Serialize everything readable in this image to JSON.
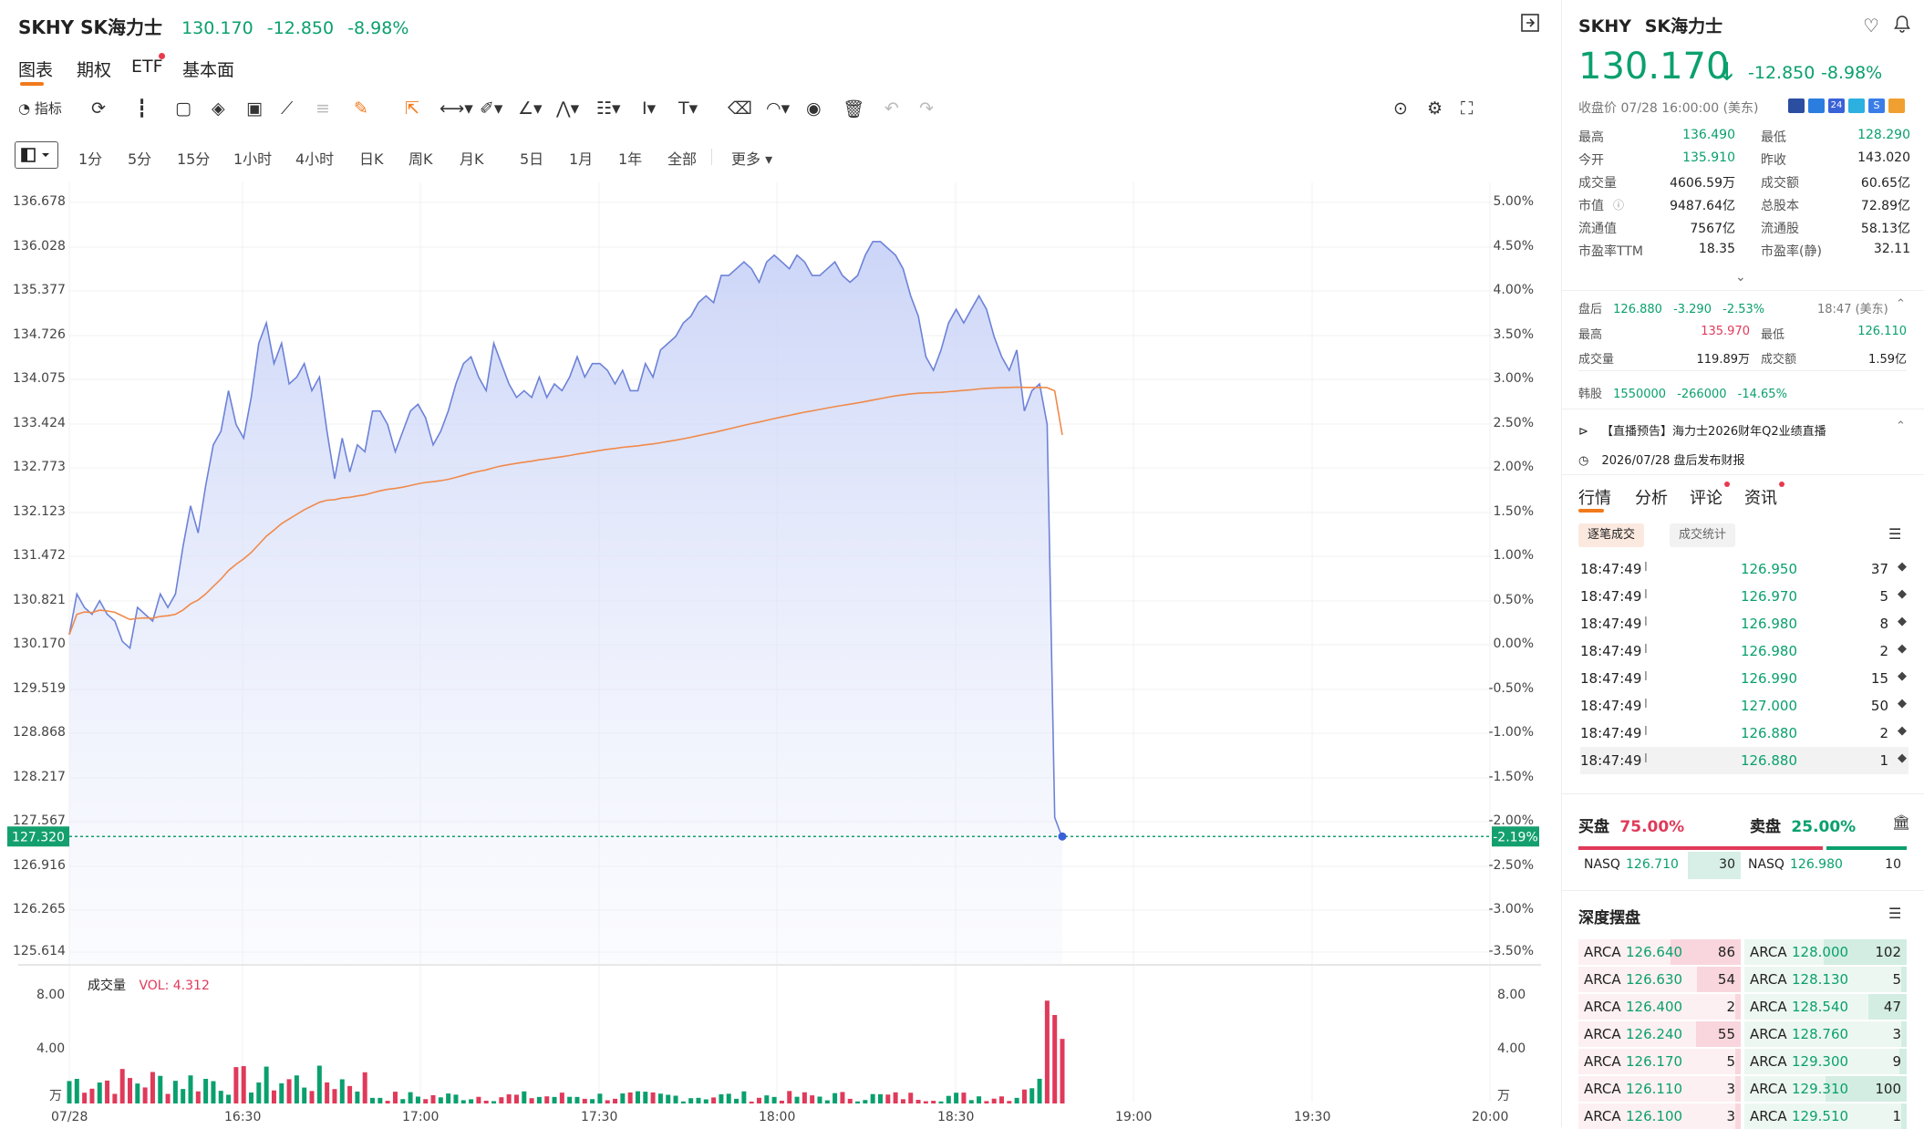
{
  "header": {
    "symbol": "SKHY SK海力士",
    "price": "130.170",
    "change": "-12.850",
    "pct": "-8.98%"
  },
  "tabs": [
    {
      "label": "图表",
      "active": true
    },
    {
      "label": "期权"
    },
    {
      "label": "ETF",
      "dot": true
    },
    {
      "label": "基本面"
    }
  ],
  "toolbar": {
    "indicator_label": "指标",
    "icons": [
      "replay-icon",
      "candle-icon",
      "square-icon",
      "layers-icon",
      "vwap-icon",
      "compare-icon",
      "align-icon",
      "pen-icon",
      "cursor-icon",
      "line-tool-icon",
      "brush-icon",
      "angle-icon",
      "pattern-icon",
      "fib-icon",
      "text-cursor-icon",
      "text-icon",
      "eraser-icon",
      "measure-icon",
      "eye-icon",
      "trash-icon",
      "undo-icon",
      "redo-icon"
    ]
  },
  "periods": [
    "1分",
    "5分",
    "15分",
    "1小时",
    "4小时",
    "日K",
    "周K",
    "月K",
    "5日",
    "1月",
    "1年",
    "全部",
    "更多"
  ],
  "chart_data": {
    "type": "area",
    "y_left_ticks": [
      "136.678",
      "136.028",
      "135.377",
      "134.726",
      "134.075",
      "133.424",
      "132.773",
      "132.123",
      "131.472",
      "130.821",
      "130.170",
      "129.519",
      "128.868",
      "128.217",
      "127.567",
      "126.916",
      "126.265",
      "125.614"
    ],
    "y_right_ticks": [
      "5.00%",
      "4.50%",
      "4.00%",
      "3.50%",
      "3.00%",
      "2.50%",
      "2.00%",
      "1.50%",
      "1.00%",
      "0.50%",
      "0.00%",
      "-0.50%",
      "-1.00%",
      "-1.50%",
      "-2.00%",
      "-2.50%",
      "-3.00%",
      "-3.50%"
    ],
    "x_ticks": [
      "07/28",
      "16:30",
      "17:00",
      "17:30",
      "18:00",
      "18:30",
      "19:00",
      "19:30",
      "20:00"
    ],
    "ylim": [
      125.614,
      136.678
    ],
    "current_price_label": "127.320",
    "current_pct_label": "-2.19%",
    "price": [
      130.3,
      130.9,
      130.7,
      130.6,
      130.8,
      130.6,
      130.5,
      130.2,
      130.1,
      130.7,
      130.6,
      130.5,
      130.9,
      130.7,
      130.9,
      131.6,
      132.2,
      131.8,
      132.5,
      133.1,
      133.3,
      133.9,
      133.4,
      133.2,
      133.8,
      134.6,
      134.9,
      134.3,
      134.6,
      134.0,
      134.1,
      134.3,
      133.9,
      134.1,
      133.3,
      132.6,
      133.2,
      132.7,
      133.1,
      133.0,
      133.6,
      133.6,
      133.4,
      133.0,
      133.3,
      133.6,
      133.7,
      133.5,
      133.1,
      133.3,
      133.6,
      134.0,
      134.3,
      134.4,
      134.1,
      133.9,
      134.6,
      134.3,
      134.0,
      133.8,
      133.9,
      133.8,
      134.1,
      133.8,
      134.0,
      133.9,
      134.1,
      134.4,
      134.1,
      134.3,
      134.3,
      134.2,
      134.0,
      134.2,
      133.9,
      133.9,
      134.3,
      134.1,
      134.5,
      134.6,
      134.7,
      134.9,
      135.0,
      135.2,
      135.3,
      135.2,
      135.6,
      135.6,
      135.7,
      135.8,
      135.7,
      135.5,
      135.8,
      135.9,
      135.8,
      135.7,
      135.9,
      135.8,
      135.6,
      135.6,
      135.7,
      135.8,
      135.6,
      135.5,
      135.6,
      135.9,
      136.1,
      136.1,
      136.0,
      135.9,
      135.7,
      135.3,
      135.0,
      134.4,
      134.2,
      134.5,
      134.9,
      135.1,
      134.9,
      135.1,
      135.3,
      135.1,
      134.7,
      134.4,
      134.2,
      134.5,
      133.6,
      133.9,
      134.0,
      133.4,
      127.6,
      127.3
    ],
    "avg_line": "average-price-line",
    "volume_label": "成交量",
    "vol_indicator": "VOL: 4.312",
    "vol_left_ticks": [
      "8.00",
      "4.00",
      "万"
    ],
    "vol_right_ticks": [
      "8.00",
      "4.00",
      "万"
    ],
    "vol_max": 9
  },
  "right": {
    "symbol": "SKHY",
    "name": "SK海力士",
    "price": "130.170",
    "change": "-12.850",
    "pct": "-8.98%",
    "close_time": "收盘价 07/28 16:00:00 (美东)",
    "stats": [
      {
        "l1": "最高",
        "v1": "136.490",
        "c1": "g",
        "l2": "最低",
        "v2": "128.290",
        "c2": "g"
      },
      {
        "l1": "今开",
        "v1": "135.910",
        "c1": "g",
        "l2": "昨收",
        "v2": "143.020",
        "c2": ""
      },
      {
        "l1": "成交量",
        "v1": "4606.59万",
        "c1": "",
        "l2": "成交额",
        "v2": "60.65亿",
        "c2": ""
      },
      {
        "l1": "市值",
        "v1": "9487.64亿",
        "c1": "",
        "l2": "总股本",
        "v2": "72.89亿",
        "c2": ""
      },
      {
        "l1": "流通值",
        "v1": "7567亿",
        "c1": "",
        "l2": "流通股",
        "v2": "58.13亿",
        "c2": ""
      },
      {
        "l1": "市盈率TTM",
        "v1": "18.35",
        "c1": "",
        "l2": "市盈率(静)",
        "v2": "32.11",
        "c2": ""
      }
    ],
    "after": {
      "label": "盘后",
      "price": "126.880",
      "change": "-3.290",
      "pct": "-2.53%",
      "time": "18:47 (美东)",
      "high_label": "最高",
      "high": "135.970",
      "low_label": "最低",
      "low": "126.110",
      "vol_label": "成交量",
      "vol": "119.89万",
      "amt_label": "成交额",
      "amt": "1.59亿"
    },
    "korea": {
      "label": "韩股",
      "price": "1550000",
      "change": "-266000",
      "pct": "-14.65%"
    },
    "live_notice": "【直播预告】海力士2026财年Q2业绩直播",
    "report_notice": "2026/07/28 盘后发布财报",
    "sub_tabs": [
      {
        "label": "行情",
        "active": true
      },
      {
        "label": "分析"
      },
      {
        "label": "评论",
        "dot": true
      },
      {
        "label": "资讯",
        "dot": true
      }
    ],
    "trade_tabs": [
      "逐笔成交",
      "成交统计"
    ],
    "trades": [
      {
        "time": "18:47:49",
        "price": "126.950",
        "qty": "37"
      },
      {
        "time": "18:47:49",
        "price": "126.970",
        "qty": "5"
      },
      {
        "time": "18:47:49",
        "price": "126.980",
        "qty": "8"
      },
      {
        "time": "18:47:49",
        "price": "126.980",
        "qty": "2"
      },
      {
        "time": "18:47:49",
        "price": "126.990",
        "qty": "15"
      },
      {
        "time": "18:47:49",
        "price": "127.000",
        "qty": "50"
      },
      {
        "time": "18:47:49",
        "price": "126.880",
        "qty": "2"
      },
      {
        "time": "18:47:49",
        "price": "126.880",
        "qty": "1"
      }
    ],
    "buy_label": "买盘",
    "buy_pct": "75.00%",
    "sell_label": "卖盘",
    "sell_pct": "25.00%",
    "buy_ratio": 0.75,
    "bbo": {
      "bid_ex": "NASQ",
      "bid": "126.710",
      "bid_qty": "30",
      "ask_ex": "NASQ",
      "ask": "126.980",
      "ask_qty": "10"
    },
    "depth_title": "深度摆盘",
    "bids": [
      {
        "ex": "ARCA",
        "price": "126.640",
        "qty": "86"
      },
      {
        "ex": "ARCA",
        "price": "126.630",
        "qty": "54"
      },
      {
        "ex": "ARCA",
        "price": "126.400",
        "qty": "2"
      },
      {
        "ex": "ARCA",
        "price": "126.240",
        "qty": "55"
      },
      {
        "ex": "ARCA",
        "price": "126.170",
        "qty": "5"
      },
      {
        "ex": "ARCA",
        "price": "126.110",
        "qty": "3"
      },
      {
        "ex": "ARCA",
        "price": "126.100",
        "qty": "3"
      }
    ],
    "asks": [
      {
        "ex": "ARCA",
        "price": "128.000",
        "qty": "102"
      },
      {
        "ex": "ARCA",
        "price": "128.130",
        "qty": "5"
      },
      {
        "ex": "ARCA",
        "price": "128.540",
        "qty": "47"
      },
      {
        "ex": "ARCA",
        "price": "128.760",
        "qty": "3"
      },
      {
        "ex": "ARCA",
        "price": "129.300",
        "qty": "9"
      },
      {
        "ex": "ARCA",
        "price": "129.310",
        "qty": "100"
      },
      {
        "ex": "ARCA",
        "price": "129.510",
        "qty": "1"
      }
    ]
  }
}
